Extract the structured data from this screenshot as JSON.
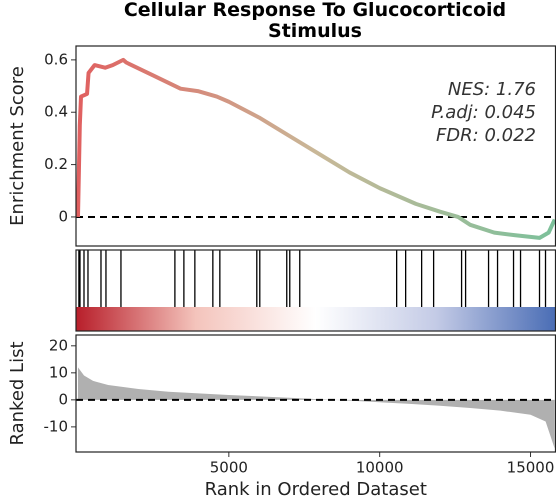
{
  "chart_data": [
    {
      "type": "line",
      "title": "Cellular Response To Glucocorticoid Stimulus",
      "ylabel": "Enrichment Score",
      "x": [
        0,
        60,
        100,
        300,
        350,
        550,
        900,
        1150,
        1500,
        1600,
        2500,
        3400,
        4000,
        4600,
        5000,
        6000,
        7000,
        8000,
        9000,
        10000,
        10600,
        11200,
        12000,
        12600,
        13000,
        13800,
        14500,
        15300,
        15600,
        15800
      ],
      "series": [
        {
          "values": [
            0,
            0.35,
            0.46,
            0.47,
            0.55,
            0.58,
            0.57,
            0.58,
            0.6,
            0.59,
            0.54,
            0.49,
            0.48,
            0.46,
            0.44,
            0.38,
            0.31,
            0.24,
            0.17,
            0.11,
            0.08,
            0.05,
            0.02,
            0,
            -0.03,
            -0.06,
            -0.07,
            -0.08,
            -0.06,
            -0.01
          ],
          "colors": [
            "#e06060",
            "#c9b898",
            "#7cc09a"
          ]
        }
      ],
      "annotations": [
        "NES: 1.76",
        "P.adj: 0.045",
        "FDR: 0.022"
      ],
      "reference_line": 0,
      "xlim": [
        -66,
        15828
      ],
      "ylim": [
        -0.111,
        0.653
      ],
      "yticks": [
        0,
        0.2,
        0.4,
        0.6
      ]
    },
    {
      "type": "rug",
      "x": [
        30,
        66,
        199,
        331,
        762,
        927,
        1424,
        3212,
        3510,
        3874,
        4470,
        4702,
        5927,
        6026,
        6920,
        7020,
        7351,
        10563,
        10861,
        11391,
        11788,
        12715,
        12848,
        13609,
        13907,
        14437,
        14669,
        15298,
        15497
      ],
      "color": "#000000",
      "bar_colors": [
        "#b81e2a",
        "#f4c4bc",
        "#ffffff",
        "#c4cbe6",
        "#4a6db5"
      ],
      "xlim": [
        -66,
        15828
      ]
    },
    {
      "type": "area",
      "ylabel": "Ranked List",
      "xlabel": "Rank in Ordered Dataset",
      "x": [
        0,
        200,
        500,
        1000,
        2000,
        3000,
        5000,
        7000,
        8000,
        9000,
        10000,
        11000,
        12000,
        13000,
        14000,
        15000,
        15500,
        15800
      ],
      "values": [
        12,
        9,
        7,
        5.5,
        4,
        3,
        1.8,
        0.8,
        0.2,
        -0.3,
        -0.9,
        -1.5,
        -2.2,
        -3,
        -4,
        -5.5,
        -8,
        -18
      ],
      "color": "#b0b0b0",
      "reference_line": 0,
      "xlim": [
        -66,
        15828
      ],
      "ylim": [
        -19.3,
        24
      ],
      "yticks": [
        -10,
        0,
        10,
        20
      ],
      "xticks": [
        5000,
        10000,
        15000
      ]
    }
  ]
}
